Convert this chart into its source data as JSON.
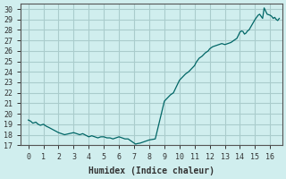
{
  "xlabel": "Humidex (Indice chaleur)",
  "ylabel": "",
  "bg_color": "#d0eeee",
  "grid_color": "#aacccc",
  "line_color": "#006666",
  "xlim": [
    -0.5,
    16.8
  ],
  "ylim": [
    17,
    30.5
  ],
  "yticks": [
    17,
    18,
    19,
    20,
    21,
    22,
    23,
    24,
    25,
    26,
    27,
    28,
    29,
    30
  ],
  "xticks": [
    0,
    1,
    2,
    3,
    4,
    5,
    6,
    7,
    8,
    9,
    10,
    11,
    12,
    13,
    14,
    15,
    16
  ],
  "x": [
    0.0,
    0.15,
    0.3,
    0.5,
    0.65,
    0.8,
    1.0,
    1.2,
    1.35,
    2.0,
    2.2,
    2.4,
    3.0,
    3.2,
    3.4,
    3.6,
    4.0,
    4.2,
    4.4,
    4.6,
    4.8,
    5.0,
    5.2,
    5.4,
    5.6,
    5.8,
    6.0,
    6.2,
    6.4,
    6.6,
    7.0,
    7.1,
    7.2,
    7.4,
    7.6,
    8.0,
    8.2,
    8.4,
    9.0,
    9.2,
    9.4,
    9.6,
    10.0,
    10.2,
    10.4,
    10.6,
    11.0,
    11.1,
    11.2,
    11.3,
    11.5,
    11.7,
    11.9,
    12.0,
    12.2,
    12.4,
    12.6,
    12.8,
    13.0,
    13.2,
    13.4,
    13.6,
    13.8,
    14.0,
    14.1,
    14.2,
    14.3,
    14.4,
    14.5,
    14.6,
    15.0,
    15.1,
    15.2,
    15.3,
    15.4,
    15.5,
    15.6,
    15.7,
    15.8,
    16.0,
    16.1,
    16.2,
    16.3,
    16.4,
    16.5,
    16.6
  ],
  "y": [
    19.4,
    19.3,
    19.1,
    19.2,
    19.0,
    18.9,
    19.0,
    18.8,
    18.7,
    18.2,
    18.1,
    18.0,
    18.2,
    18.1,
    18.0,
    18.1,
    17.8,
    17.9,
    17.8,
    17.7,
    17.8,
    17.8,
    17.7,
    17.7,
    17.6,
    17.7,
    17.8,
    17.7,
    17.6,
    17.6,
    17.2,
    17.1,
    17.15,
    17.2,
    17.3,
    17.5,
    17.55,
    17.6,
    21.2,
    21.5,
    21.8,
    22.0,
    23.2,
    23.5,
    23.8,
    24.0,
    24.6,
    24.9,
    25.1,
    25.3,
    25.5,
    25.8,
    26.0,
    26.2,
    26.4,
    26.5,
    26.6,
    26.7,
    26.6,
    26.7,
    26.8,
    27.0,
    27.2,
    27.8,
    27.9,
    27.85,
    27.6,
    27.7,
    27.9,
    28.0,
    29.0,
    29.2,
    29.4,
    29.5,
    29.3,
    29.1,
    30.1,
    29.8,
    29.5,
    29.4,
    29.3,
    29.1,
    29.2,
    29.0,
    28.9,
    29.1
  ]
}
